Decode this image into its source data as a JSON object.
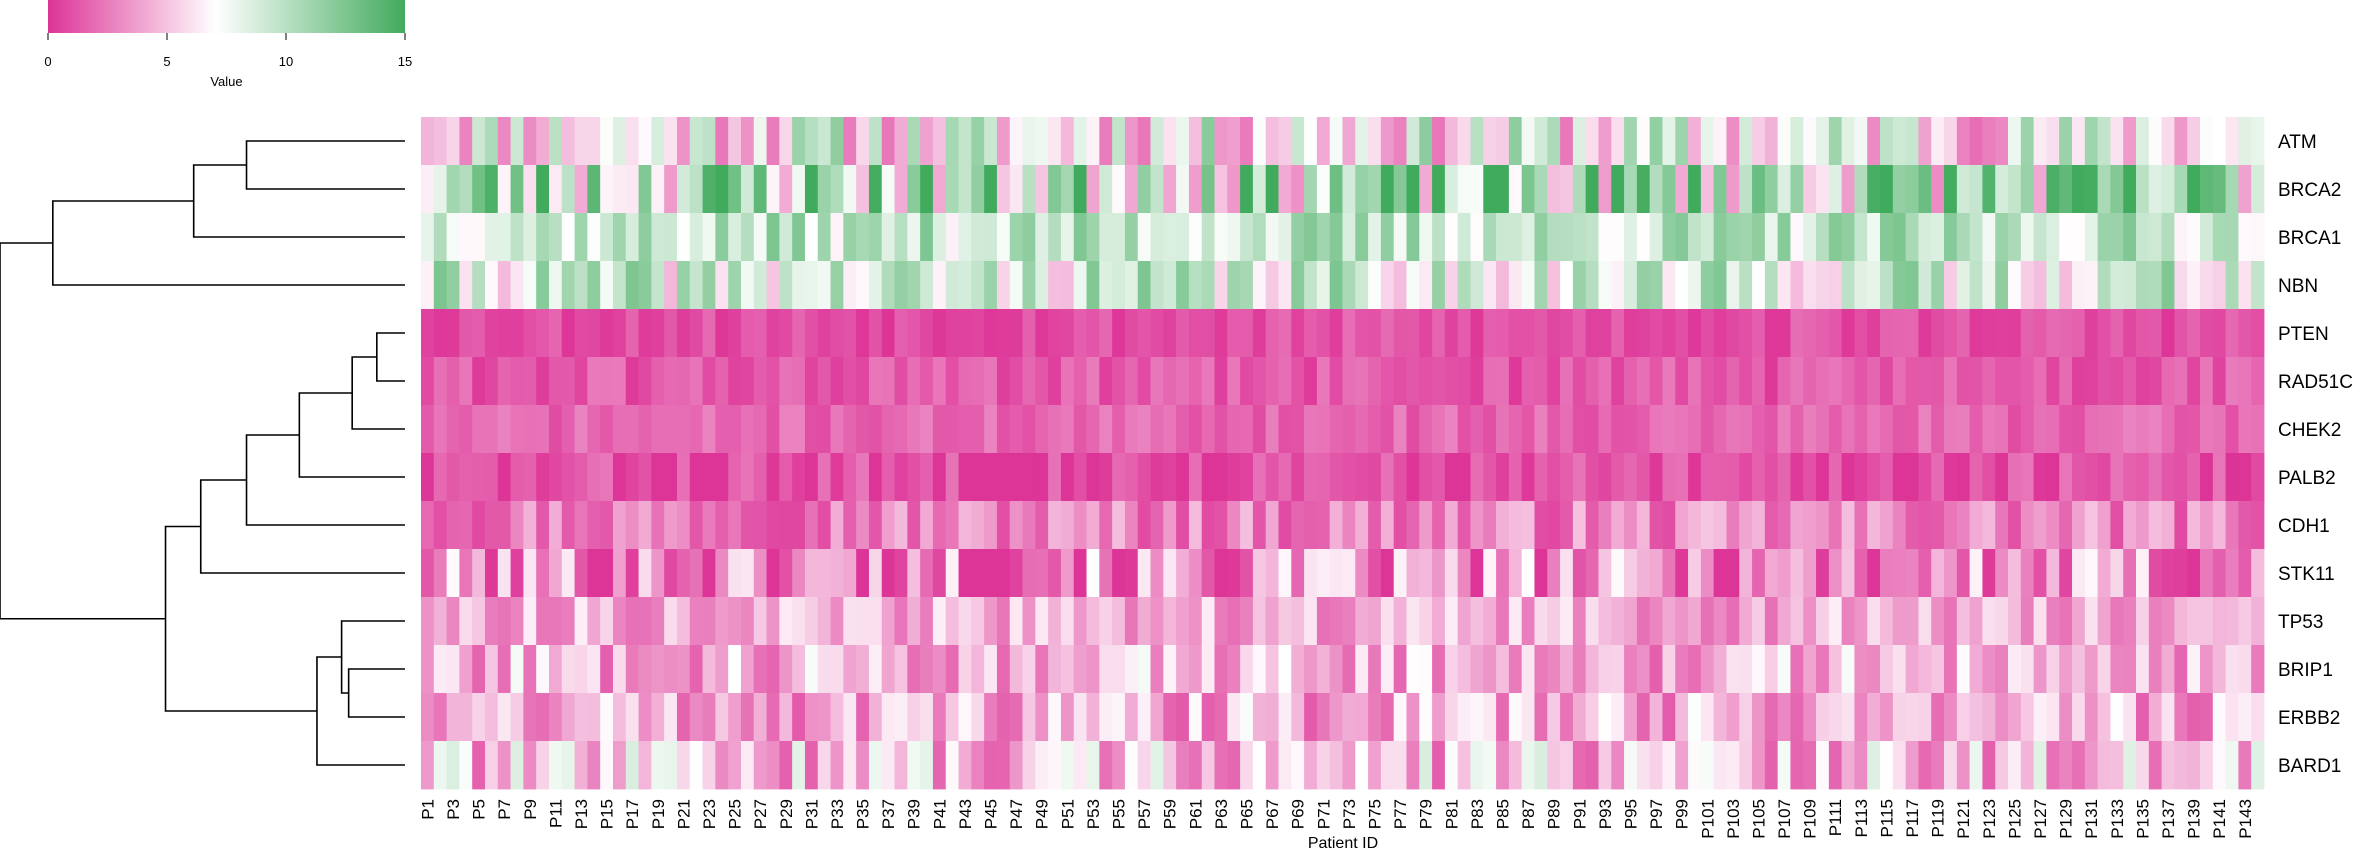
{
  "chart_data": {
    "type": "heatmap",
    "xlabel": "Patient ID",
    "ylabel": "",
    "legend": {
      "title": "Value",
      "position": "top-left",
      "min": 0,
      "max": 15,
      "ticks": [
        0,
        5,
        10,
        15
      ],
      "colors": [
        "#dd3497",
        "#ffffff",
        "#41ab5d"
      ]
    },
    "rows": [
      "ATM",
      "BRCA2",
      "BRCA1",
      "NBN",
      "PTEN",
      "RAD51C",
      "CHEK2",
      "PALB2",
      "CDH1",
      "STK11",
      "TP53",
      "BRIP1",
      "ERBB2",
      "BARD1"
    ],
    "row_base": [
      7,
      10,
      9.5,
      8.5,
      1,
      1.3,
      1.8,
      0.8,
      2.8,
      3,
      4.2,
      4.5,
      4.3,
      5
    ],
    "row_amp": [
      5,
      7,
      3,
      4,
      1,
      1.2,
      1,
      1.6,
      2.2,
      4,
      2.2,
      3,
      3,
      3.6
    ],
    "row_seed": [
      11,
      23,
      37,
      41,
      53,
      61,
      71,
      83,
      97,
      101,
      113,
      127,
      131,
      139
    ],
    "n_patients": 144,
    "patient_prefix": "P",
    "x_tick_labels": [
      "P1",
      "P3",
      "P5",
      "P7",
      "P9",
      "P11",
      "P13",
      "P15",
      "P17",
      "P19",
      "P21",
      "P23",
      "P25",
      "P27",
      "P29",
      "P31",
      "P33",
      "P35",
      "P37",
      "P39",
      "P41",
      "P43",
      "P45",
      "P47",
      "P49",
      "P51",
      "P53",
      "P55",
      "P57",
      "P59",
      "P61",
      "P63",
      "P65",
      "P67",
      "P69",
      "P71",
      "P73",
      "P75",
      "P77",
      "P79",
      "P81",
      "P83",
      "P85",
      "P87",
      "P89",
      "P91",
      "P93",
      "P95",
      "P97",
      "P99",
      "P101",
      "P103",
      "P105",
      "P107",
      "P109",
      "P111",
      "P113",
      "P115",
      "P117",
      "P119",
      "P121",
      "P123",
      "P125",
      "P127",
      "P129",
      "P131",
      "P133",
      "P135",
      "P137",
      "P139",
      "P141",
      "P143"
    ],
    "dendrogram": {
      "merges": [
        [
          0,
          1,
          0.45
        ],
        [
          14,
          2,
          0.6
        ],
        [
          15,
          3,
          1.0
        ],
        [
          4,
          5,
          0.08
        ],
        [
          17,
          6,
          0.15
        ],
        [
          18,
          7,
          0.3
        ],
        [
          19,
          8,
          0.45
        ],
        [
          20,
          9,
          0.58
        ],
        [
          11,
          12,
          0.16
        ],
        [
          22,
          10,
          0.18
        ],
        [
          23,
          13,
          0.25
        ],
        [
          21,
          24,
          0.68
        ],
        [
          16,
          25,
          1.15
        ]
      ]
    }
  }
}
